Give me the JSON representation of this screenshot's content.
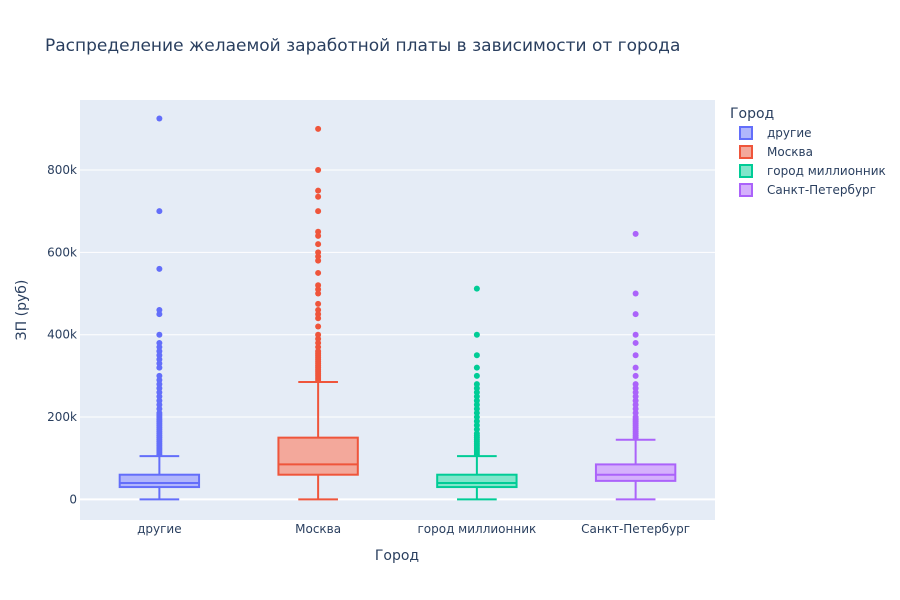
{
  "chart_data": {
    "type": "box",
    "title": "Распределение желаемой заработной платы в зависимости от города",
    "xlabel": "Город",
    "ylabel": "ЗП (руб)",
    "ylim": [
      -50000,
      970000
    ],
    "yticks": [
      0,
      200000,
      400000,
      600000,
      800000
    ],
    "ytick_labels": [
      "0",
      "200k",
      "400k",
      "600k",
      "800k"
    ],
    "grid": true,
    "legend": {
      "title": "Город",
      "placement": "top-right"
    },
    "categories": [
      "другие",
      "Москва",
      "город миллионник",
      "Санкт-Петербург"
    ],
    "series": [
      {
        "name": "другие",
        "color": "#636efa",
        "fill": "#b1b6fc",
        "whisker_low": 0,
        "q1": 30000,
        "median": 40000,
        "q3": 60000,
        "whisker_high": 105000,
        "outliers": [
          110000,
          115000,
          120000,
          125000,
          130000,
          135000,
          140000,
          145000,
          150000,
          155000,
          160000,
          165000,
          170000,
          175000,
          180000,
          185000,
          190000,
          195000,
          200000,
          205000,
          210000,
          220000,
          230000,
          240000,
          250000,
          260000,
          270000,
          280000,
          290000,
          300000,
          320000,
          330000,
          340000,
          350000,
          360000,
          370000,
          380000,
          400000,
          450000,
          460000,
          560000,
          700000,
          925000
        ]
      },
      {
        "name": "Москва",
        "color": "#ef553b",
        "fill": "#f3a89b",
        "whisker_low": 0,
        "q1": 60000,
        "median": 85000,
        "q3": 150000,
        "whisker_high": 285000,
        "outliers": [
          290000,
          295000,
          300000,
          305000,
          310000,
          315000,
          320000,
          325000,
          330000,
          335000,
          340000,
          345000,
          350000,
          355000,
          360000,
          370000,
          380000,
          390000,
          400000,
          420000,
          440000,
          450000,
          460000,
          475000,
          500000,
          510000,
          520000,
          550000,
          580000,
          590000,
          600000,
          620000,
          640000,
          650000,
          700000,
          735000,
          750000,
          800000,
          900000
        ]
      },
      {
        "name": "город миллионник",
        "color": "#00cc96",
        "fill": "#80e6cb",
        "whisker_low": 0,
        "q1": 30000,
        "median": 40000,
        "q3": 60000,
        "whisker_high": 105000,
        "outliers": [
          110000,
          115000,
          120000,
          125000,
          130000,
          135000,
          140000,
          145000,
          150000,
          155000,
          160000,
          170000,
          180000,
          190000,
          200000,
          210000,
          220000,
          230000,
          240000,
          250000,
          260000,
          270000,
          280000,
          300000,
          320000,
          350000,
          400000,
          512000
        ]
      },
      {
        "name": "Санкт-Петербург",
        "color": "#ab63fa",
        "fill": "#d5b1fc",
        "whisker_low": 0,
        "q1": 45000,
        "median": 60000,
        "q3": 85000,
        "whisker_high": 145000,
        "outliers": [
          150000,
          155000,
          160000,
          165000,
          170000,
          175000,
          180000,
          185000,
          190000,
          195000,
          200000,
          210000,
          220000,
          230000,
          240000,
          250000,
          260000,
          270000,
          280000,
          300000,
          320000,
          350000,
          380000,
          400000,
          450000,
          500000,
          645000
        ]
      }
    ]
  }
}
